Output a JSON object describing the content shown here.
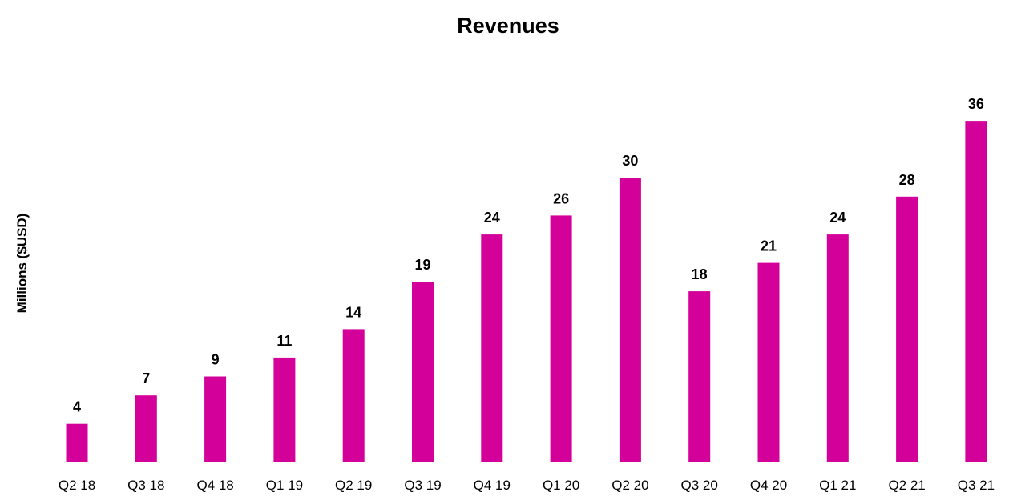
{
  "chart_data": {
    "type": "bar",
    "title": "Revenues",
    "xlabel": "",
    "ylabel": "Millions ($USD)",
    "categories": [
      "Q2 18",
      "Q3 18",
      "Q4 18",
      "Q1 19",
      "Q2 19",
      "Q3 19",
      "Q4 19",
      "Q1 20",
      "Q2 20",
      "Q3 20",
      "Q4 20",
      "Q1 21",
      "Q2 21",
      "Q3 21"
    ],
    "values": [
      4,
      7,
      9,
      11,
      14,
      19,
      24,
      26,
      30,
      18,
      21,
      24,
      28,
      36
    ],
    "data_labels": [
      "4",
      "7",
      "9",
      "11",
      "14",
      "19",
      "24",
      "26",
      "30",
      "18",
      "21",
      "24",
      "28",
      "36"
    ],
    "ylim": [
      0,
      36
    ],
    "grid": false,
    "legend": "none",
    "colors": {
      "bar": "#d4009a",
      "axis": "#d9d9d9",
      "text": "#000000"
    }
  }
}
